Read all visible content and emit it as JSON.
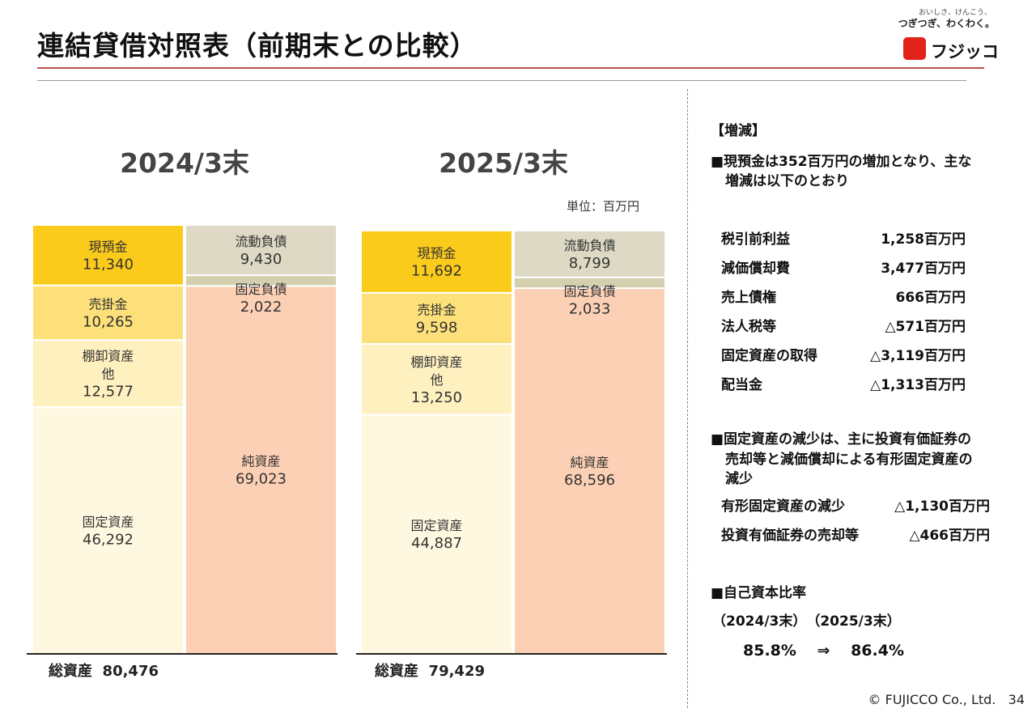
{
  "title": "連結貸借対照表（前期末との比較）",
  "logo": {
    "tagline_small": "おいしさ、けんこう、",
    "tagline": "つぎつぎ、わくわく。",
    "name": "フジッコ"
  },
  "unit": "単位：百万円",
  "chart_data": {
    "type": "bar",
    "subtype": "stacked-balance-sheet",
    "unit": "百万円",
    "categories": [
      "2024/3末",
      "2025/3末"
    ],
    "assets": [
      {
        "name": "現預金",
        "values": [
          11340,
          11692
        ],
        "labels": [
          "11,340",
          "11,692"
        ],
        "color": "#fbcb1c"
      },
      {
        "name": "売掛金",
        "values": [
          10265,
          9598
        ],
        "labels": [
          "10,265",
          "9,598"
        ],
        "color": "#fde07a"
      },
      {
        "name": "棚卸資産他",
        "name_lines": [
          "棚卸資産",
          "他"
        ],
        "values": [
          12577,
          13250
        ],
        "labels": [
          "12,577",
          "13,250"
        ],
        "color": "#fff0bf"
      },
      {
        "name": "固定資産",
        "values": [
          46292,
          44887
        ],
        "labels": [
          "46,292",
          "44,887"
        ],
        "color": "#fff8e0"
      }
    ],
    "liabilities": [
      {
        "name": "流動負債",
        "values": [
          9430,
          8799
        ],
        "labels": [
          "9,430",
          "8,799"
        ],
        "color": "#ddd9c4"
      },
      {
        "name": "固定負債",
        "values": [
          2022,
          2033
        ],
        "labels": [
          "2,022",
          "2,033"
        ],
        "color": "#d4cfae"
      },
      {
        "name": "純資産",
        "values": [
          69023,
          68596
        ],
        "labels": [
          "69,023",
          "68,596"
        ],
        "color": "#fcd0b4"
      }
    ],
    "totals": {
      "label": "総資産",
      "values": [
        80476,
        79429
      ],
      "labels": [
        "80,476",
        "79,429"
      ]
    }
  },
  "panel": {
    "heading": "【増減】",
    "cash_note_line1": "■現預金は352百万円の増加となり、主な",
    "cash_note_line2": "増減は以下のとおり",
    "cash_items": [
      {
        "label": "税引前利益",
        "value": "1,258百万円"
      },
      {
        "label": "減価償却費",
        "value": "3,477百万円"
      },
      {
        "label": "売上債権",
        "value": "666百万円"
      },
      {
        "label": "法人税等",
        "value": "△571百万円"
      },
      {
        "label": "固定資産の取得",
        "value": "△3,119百万円"
      },
      {
        "label": "配当金",
        "value": "△1,313百万円"
      }
    ],
    "fixed_note_line1": "■固定資産の減少は、主に投資有価証券の",
    "fixed_note_line2": "売却等と減価償却による有形固定資産の",
    "fixed_note_line3": "減少",
    "fixed_items": [
      {
        "label": "有形固定資産の減少",
        "value": "△1,130百万円"
      },
      {
        "label": "投資有価証券の売却等",
        "value": "△466百万円"
      }
    ],
    "equity_heading": "■自己資本比率",
    "equity_years": "（2024/3末）　（2025/3末）",
    "equity_values": "85.8%　 ⇒ 　86.4%"
  },
  "footer": {
    "copyright": "© FUJICCO Co., Ltd.",
    "page": "34"
  }
}
